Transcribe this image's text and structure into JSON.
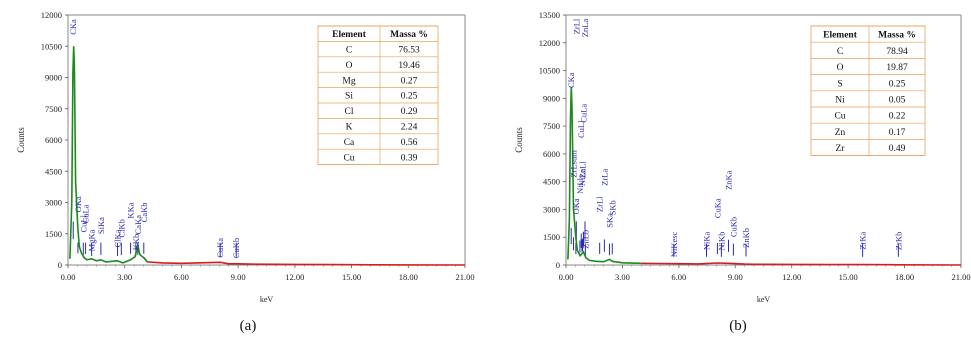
{
  "chart_data": [
    {
      "type": "line",
      "panel_label": "(a)",
      "xlabel": "keV",
      "ylabel": "Counts",
      "xlim": [
        0,
        21
      ],
      "ylim": [
        0,
        12000
      ],
      "xticks": [
        "0.00",
        "3.00",
        "6.00",
        "9.00",
        "12.00",
        "15.00",
        "18.00",
        "21.00"
      ],
      "yticks": [
        "0",
        "1500",
        "3000",
        "4500",
        "6000",
        "7500",
        "9000",
        "10500",
        "12000"
      ],
      "line_colors": {
        "low": "#1c8a1c",
        "high": "#d41e1e"
      },
      "peak_line_color": "#2b2bb0",
      "spectrum": [
        [
          0.1,
          300
        ],
        [
          0.2,
          3000
        ],
        [
          0.26,
          9200
        ],
        [
          0.3,
          10500
        ],
        [
          0.34,
          9500
        ],
        [
          0.4,
          4000
        ],
        [
          0.52,
          1800
        ],
        [
          0.6,
          900
        ],
        [
          0.7,
          600
        ],
        [
          0.85,
          350
        ],
        [
          1.0,
          250
        ],
        [
          1.25,
          300
        ],
        [
          1.5,
          200
        ],
        [
          1.74,
          250
        ],
        [
          2.0,
          150
        ],
        [
          2.62,
          200
        ],
        [
          2.9,
          100
        ],
        [
          3.31,
          250
        ],
        [
          3.55,
          400
        ],
        [
          3.69,
          950
        ],
        [
          3.8,
          500
        ],
        [
          4.01,
          350
        ],
        [
          4.2,
          150
        ],
        [
          5.0,
          100
        ],
        [
          6.0,
          80
        ],
        [
          8.05,
          130
        ],
        [
          8.5,
          60
        ],
        [
          9.0,
          60
        ],
        [
          10.0,
          40
        ],
        [
          12.0,
          30
        ],
        [
          14.0,
          20
        ],
        [
          16.0,
          10
        ],
        [
          18.0,
          5
        ],
        [
          21.0,
          0
        ]
      ],
      "peaks": [
        {
          "label": "CKa",
          "x": 0.277,
          "top": 11800
        },
        {
          "label": "OKa",
          "x": 0.525,
          "top": 3300
        },
        {
          "label": "CuLl",
          "x": 0.81,
          "top": 2400
        },
        {
          "label": "CuLa",
          "x": 0.93,
          "top": 2900
        },
        {
          "label": "MgKa",
          "x": 1.25,
          "top": 1700
        },
        {
          "label": "SiKa",
          "x": 1.74,
          "top": 2300
        },
        {
          "label": "ClKa",
          "x": 2.62,
          "top": 1700
        },
        {
          "label": "ClKb",
          "x": 2.82,
          "top": 2200
        },
        {
          "label": "KKa",
          "x": 3.31,
          "top": 3000
        },
        {
          "label": "KKb",
          "x": 3.59,
          "top": 1500
        },
        {
          "label": "CaKa",
          "x": 3.69,
          "top": 2400
        },
        {
          "label": "CaKb",
          "x": 4.01,
          "top": 3000
        },
        {
          "label": "CuKa",
          "x": 8.05,
          "top": 1300
        },
        {
          "label": "CuKb",
          "x": 8.9,
          "top": 1300
        }
      ],
      "table": {
        "headers": [
          "Element",
          "Massa %"
        ],
        "rows": [
          [
            "C",
            "76.53"
          ],
          [
            "O",
            "19.46"
          ],
          [
            "Mg",
            "0.27"
          ],
          [
            "Si",
            "0.25"
          ],
          [
            "Cl",
            "0.29"
          ],
          [
            "K",
            "2.24"
          ],
          [
            "Ca",
            "0.56"
          ],
          [
            "Cu",
            "0.39"
          ]
        ]
      }
    },
    {
      "type": "line",
      "panel_label": "(b)",
      "xlabel": "keV",
      "ylabel": "Counts",
      "xlim": [
        0,
        21
      ],
      "ylim": [
        0,
        13500
      ],
      "xticks": [
        "0.00",
        "3.00",
        "6.00",
        "9.00",
        "12.00",
        "15.00",
        "18.00",
        "21.00"
      ],
      "yticks": [
        "0",
        "1500",
        "3000",
        "4500",
        "6000",
        "7500",
        "9000",
        "10500",
        "12000",
        "13500"
      ],
      "line_colors": {
        "low": "#1c8a1c",
        "high": "#d41e1e"
      },
      "peak_line_color": "#2b2bb0",
      "spectrum": [
        [
          0.1,
          300
        ],
        [
          0.18,
          2500
        ],
        [
          0.24,
          8000
        ],
        [
          0.28,
          9600
        ],
        [
          0.32,
          8500
        ],
        [
          0.4,
          3000
        ],
        [
          0.52,
          1500
        ],
        [
          0.6,
          800
        ],
        [
          0.75,
          500
        ],
        [
          0.93,
          700
        ],
        [
          1.05,
          400
        ],
        [
          1.25,
          250
        ],
        [
          1.6,
          200
        ],
        [
          2.0,
          180
        ],
        [
          2.31,
          300
        ],
        [
          2.46,
          200
        ],
        [
          3.0,
          120
        ],
        [
          4.0,
          90
        ],
        [
          5.0,
          80
        ],
        [
          6.0,
          70
        ],
        [
          7.0,
          60
        ],
        [
          8.05,
          110
        ],
        [
          8.64,
          90
        ],
        [
          9.5,
          50
        ],
        [
          10.0,
          40
        ],
        [
          12.0,
          30
        ],
        [
          14.0,
          20
        ],
        [
          15.8,
          25
        ],
        [
          17.7,
          10
        ],
        [
          21.0,
          0
        ]
      ],
      "peaks": [
        {
          "label": "CKa",
          "x": 0.277,
          "top": 10400
        },
        {
          "label": "ZnLl",
          "x": 0.88,
          "top": 5600
        },
        {
          "label": "ZrLsum",
          "x": 0.4,
          "top": 6200
        },
        {
          "label": "OKa",
          "x": 0.525,
          "top": 3600
        },
        {
          "label": "NiLl",
          "x": 0.74,
          "top": 4700
        },
        {
          "label": "NiLa",
          "x": 0.85,
          "top": 5200
        },
        {
          "label": "CuLl",
          "x": 0.81,
          "top": 7800
        },
        {
          "label": "CuLa",
          "x": 0.93,
          "top": 8700
        },
        {
          "label": "ZnLa",
          "x": 1.01,
          "top": 13300
        },
        {
          "label": "ZrLl",
          "x": 0.55,
          "top": 13300
        },
        {
          "label": "ZnLb",
          "x": 1.03,
          "top": 1900
        },
        {
          "label": "ZrLl",
          "x": 1.79,
          "top": 3700
        },
        {
          "label": "SKa",
          "x": 2.31,
          "top": 2800
        },
        {
          "label": "ZrLa",
          "x": 2.04,
          "top": 5200
        },
        {
          "label": "SKb",
          "x": 2.46,
          "top": 3500
        },
        {
          "label": "NiKesc",
          "x": 5.73,
          "top": 1800
        },
        {
          "label": "NiKa",
          "x": 7.47,
          "top": 1800
        },
        {
          "label": "NiKb",
          "x": 8.26,
          "top": 1800
        },
        {
          "label": "CuKa",
          "x": 8.05,
          "top": 3600
        },
        {
          "label": "CuKb",
          "x": 8.9,
          "top": 2600
        },
        {
          "label": "ZnKa",
          "x": 8.64,
          "top": 5100
        },
        {
          "label": "ZnKb",
          "x": 9.57,
          "top": 2000
        },
        {
          "label": "ZrKa",
          "x": 15.77,
          "top": 1800
        },
        {
          "label": "ZrKb",
          "x": 17.67,
          "top": 1800
        }
      ],
      "table": {
        "headers": [
          "Element",
          "Massa %"
        ],
        "rows": [
          [
            "C",
            "78.94"
          ],
          [
            "O",
            "19.87"
          ],
          [
            "S",
            "0.25"
          ],
          [
            "Ni",
            "0.05"
          ],
          [
            "Cu",
            "0.22"
          ],
          [
            "Zn",
            "0.17"
          ],
          [
            "Zr",
            "0.49"
          ]
        ]
      }
    }
  ]
}
